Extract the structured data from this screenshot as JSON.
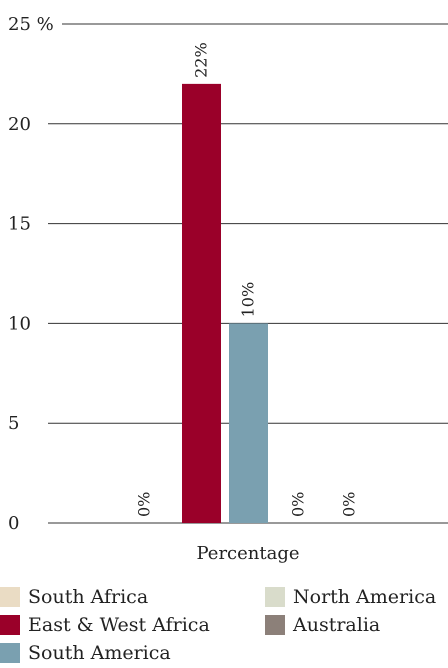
{
  "chart_data": {
    "type": "bar",
    "title": "",
    "xlabel": "Percentage",
    "ylabel": "",
    "ylim": [
      0,
      25
    ],
    "yticks": [
      "0",
      "5",
      "10",
      "15",
      "20",
      "25 %"
    ],
    "grid": true,
    "series": [
      {
        "name": "South Africa",
        "value": 0,
        "label": "0%",
        "color": "#eadcc4"
      },
      {
        "name": "East & West Africa",
        "value": 22,
        "label": "22%",
        "color": "#9a0029"
      },
      {
        "name": "South America",
        "value": 10,
        "label": "10%",
        "color": "#7aa0b0"
      },
      {
        "name": "North America",
        "value": 0,
        "label": "0%",
        "color": "#d9dccb"
      },
      {
        "name": "Australia",
        "value": 0,
        "label": "0%",
        "color": "#8c8079"
      }
    ],
    "legend_position": "bottom"
  }
}
